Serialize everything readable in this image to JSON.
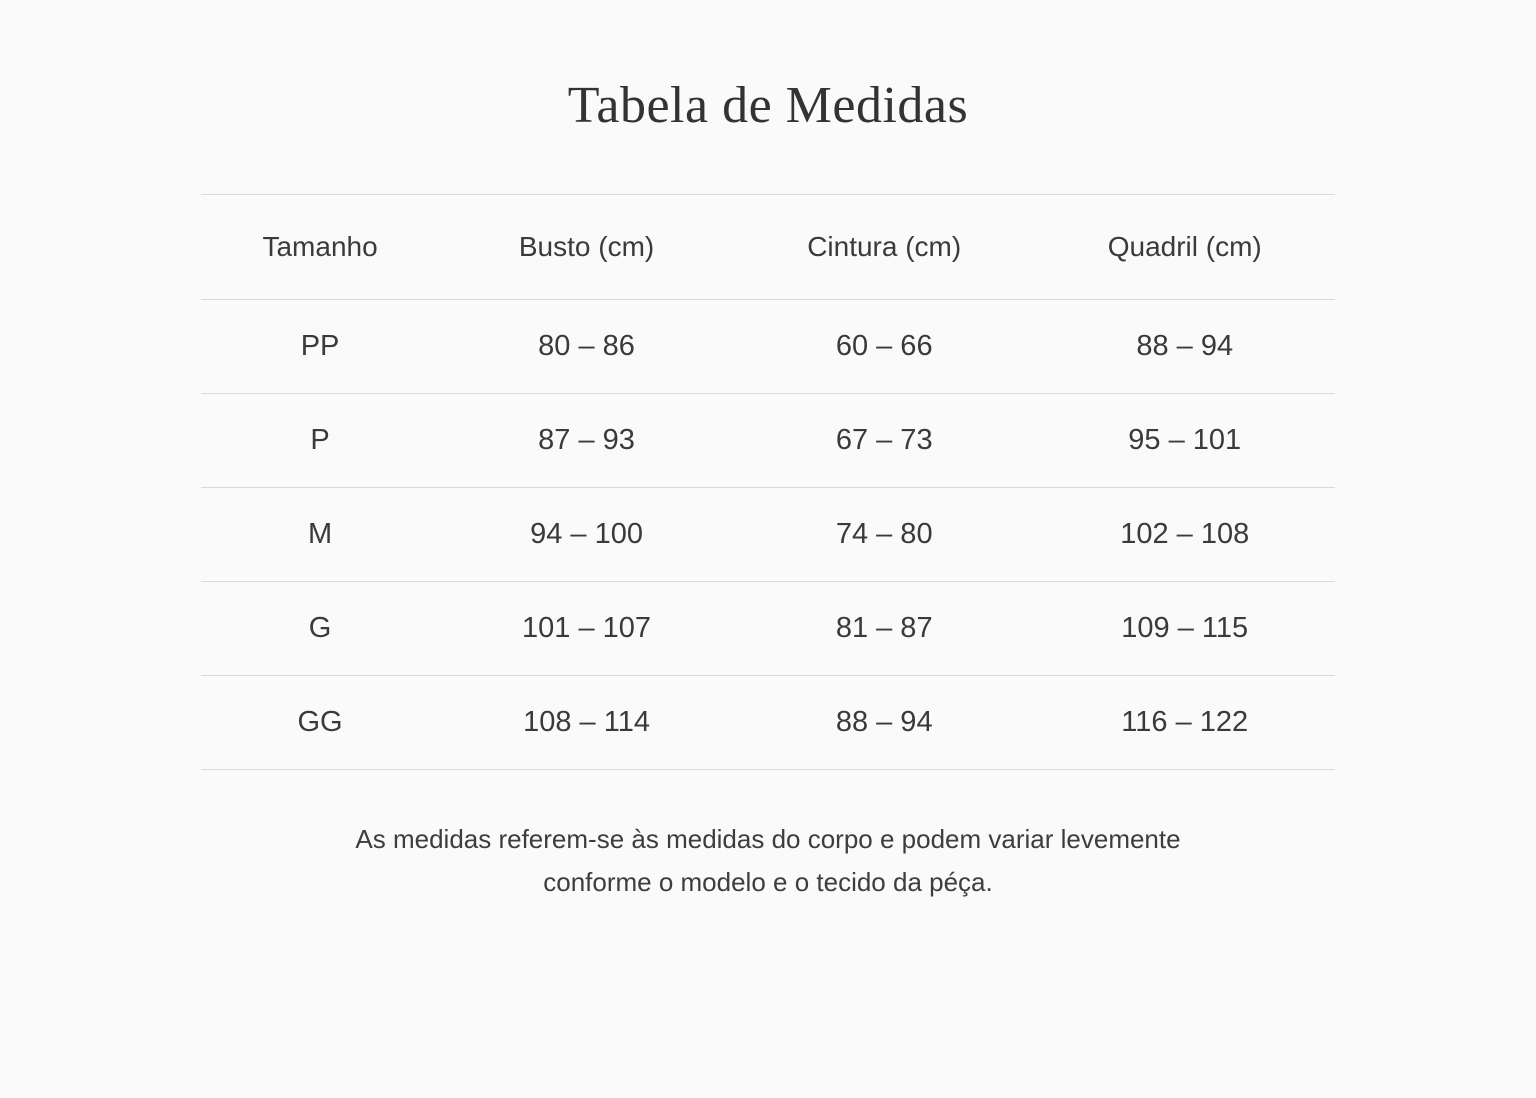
{
  "page": {
    "title": "Tabela de Medidas",
    "background_color": "#fafafa",
    "text_color": "#3a3a3a",
    "divider_color": "#d9d9d9"
  },
  "table": {
    "columns": [
      "Tamanho",
      "Busto (cm)",
      "Cintura (cm)",
      "Quadril (cm)"
    ],
    "rows": [
      {
        "size": "PP",
        "busto": "80 – 86",
        "cintura": "60 – 66",
        "quadril": "88 – 94"
      },
      {
        "size": "P",
        "busto": "87 – 93",
        "cintura": "67 – 73",
        "quadril": "95 – 101"
      },
      {
        "size": "M",
        "busto": "94 – 100",
        "cintura": "74 – 80",
        "quadril": "102 – 108"
      },
      {
        "size": "G",
        "busto": "101 – 107",
        "cintura": "81 – 87",
        "quadril": "109 – 115"
      },
      {
        "size": "GG",
        "busto": "108 – 114",
        "cintura": "88 – 94",
        "quadril": "116 – 122"
      }
    ]
  },
  "note": {
    "line1": "As medidas referem-se às medidas do corpo e podem variar levemente",
    "line2": "conforme o modelo e o tecido da péça."
  }
}
